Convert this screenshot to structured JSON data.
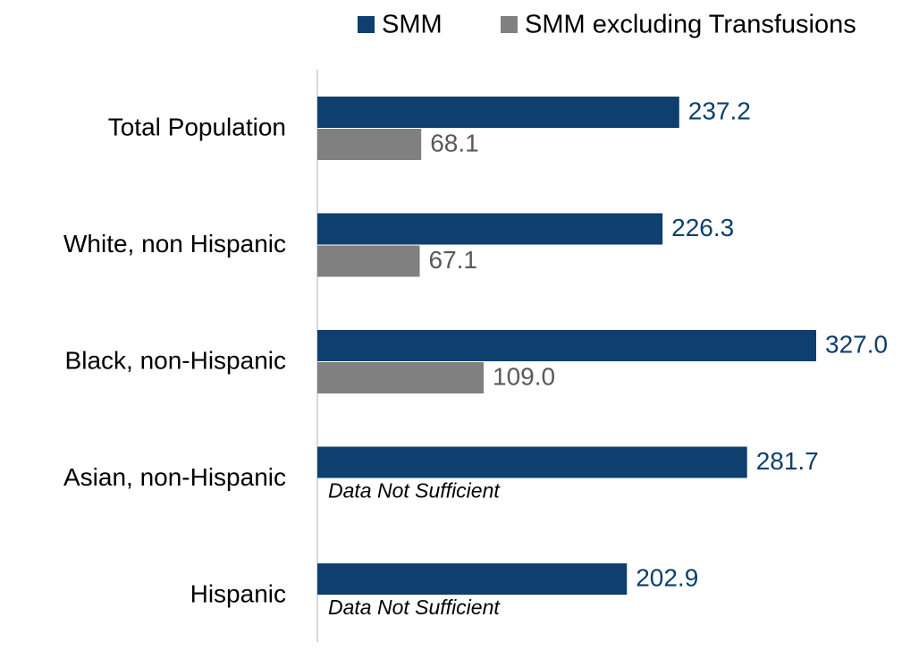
{
  "chart_data": {
    "type": "bar",
    "orientation": "horizontal",
    "categories": [
      "Total Population",
      "White, non Hispanic",
      "Black, non-Hispanic",
      "Asian, non-Hispanic",
      "Hispanic"
    ],
    "series": [
      {
        "name": "SMM",
        "color": "#0e3f6e",
        "label_color": "#0e3f6e",
        "values": [
          237.2,
          226.3,
          327,
          281.7,
          202.9
        ],
        "value_labels": [
          "237.2",
          "226.3",
          "327.0",
          "281.7",
          "202.9"
        ]
      },
      {
        "name": "SMM excluding Transfusions",
        "color": "#808080",
        "label_color": "#595959",
        "values": [
          68.1,
          67.1,
          109,
          null,
          null
        ],
        "value_labels": [
          "68.1",
          "67.1",
          "109.0",
          null,
          null
        ]
      }
    ],
    "annotations": [
      "Data Not Sufficient",
      "Data Not Sufficient"
    ],
    "legend": "top-right"
  }
}
